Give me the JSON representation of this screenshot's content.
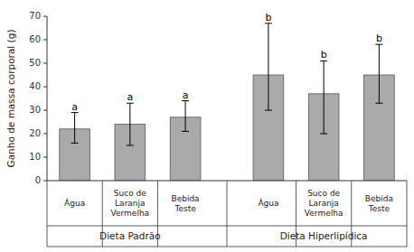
{
  "chart_data": {
    "type": "bar",
    "ylabel": "Ganho de massa corporal (g)",
    "categories": [
      "Dieta Padrão",
      "Dieta Hiperlipídica"
    ],
    "series": [
      {
        "name": "Água",
        "values": [
          22,
          45
        ],
        "error_up": [
          7,
          22
        ],
        "error_down": [
          6,
          15
        ],
        "letters": [
          "a",
          "b"
        ]
      },
      {
        "name": "Suco de\nLaranja\nVermelha",
        "values": [
          24,
          37
        ],
        "error_up": [
          9,
          14
        ],
        "error_down": [
          9,
          17
        ],
        "letters": [
          "a",
          "b"
        ]
      },
      {
        "name": "Bebida\nTeste",
        "values": [
          27,
          45
        ],
        "error_up": [
          7,
          13
        ],
        "error_down": [
          6,
          12
        ],
        "letters": [
          "a",
          "b"
        ]
      }
    ],
    "color": "#aaaaaa",
    "ylim": [
      0,
      70
    ],
    "yticks": [
      0,
      10,
      20,
      30,
      40,
      50,
      60,
      70
    ],
    "grid": false
  }
}
